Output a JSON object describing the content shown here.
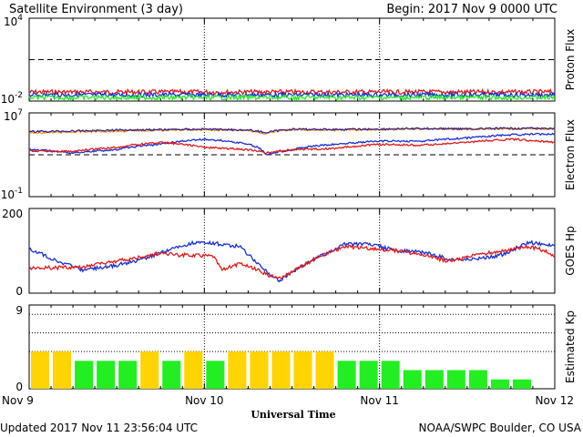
{
  "header": {
    "title": "Satellite Environment (3 day)",
    "begin": "Begin:  2017 Nov 9 0000 UTC"
  },
  "footer": {
    "updated": "Updated 2017 Nov 11 23:56:04 UTC",
    "credit": "NOAA/SWPC Boulder, CO USA"
  },
  "x_axis": {
    "label": "Universal Time",
    "ticks": [
      "Nov 9",
      "Nov 10",
      "Nov 11",
      "Nov 12"
    ]
  },
  "colors": {
    "red": "#e41a1a",
    "blue": "#1a2fd6",
    "green": "#22ee22",
    "orange": "#f4a21e",
    "navy": "#3a1f8a",
    "kp_yellow": "#ffd400",
    "kp_green": "#22ee22"
  },
  "chart_data": [
    {
      "type": "line",
      "ylabel": "Proton Flux",
      "yscale": "log",
      "yticks": [
        "10",
        "10"
      ],
      "yticks_exp": [
        "4",
        "-2"
      ],
      "ylim": [
        0.01,
        10000
      ],
      "threshold": 10,
      "x_unit": "days since 2017 Nov 9 0000 UTC",
      "xlim": [
        0,
        3
      ],
      "series": [
        {
          "color": "red",
          "x": [
            0,
            0.5,
            1,
            1.5,
            2,
            2.5,
            3
          ],
          "y": [
            0.045,
            0.045,
            0.045,
            0.045,
            0.045,
            0.045,
            0.045
          ]
        },
        {
          "color": "blue",
          "x": [
            0,
            0.5,
            1,
            1.5,
            2,
            2.5,
            3
          ],
          "y": [
            0.028,
            0.028,
            0.028,
            0.028,
            0.028,
            0.028,
            0.028
          ]
        },
        {
          "color": "green",
          "x": [
            0,
            0.5,
            1,
            1.5,
            2,
            2.5,
            3
          ],
          "y": [
            0.018,
            0.018,
            0.018,
            0.018,
            0.018,
            0.018,
            0.018
          ]
        }
      ]
    },
    {
      "type": "line",
      "ylabel": "Electron Flux",
      "yscale": "log",
      "yticks": [
        "10",
        "10"
      ],
      "yticks_exp": [
        "7",
        "-1"
      ],
      "ylim": [
        0.1,
        10000000
      ],
      "threshold": 1000,
      "xlim": [
        0,
        3
      ],
      "series": [
        {
          "color": "orange",
          "x": [
            0,
            0.25,
            0.5,
            0.75,
            1.0,
            1.25,
            1.35,
            1.5,
            1.75,
            2.0,
            2.25,
            2.5,
            2.75,
            3.0
          ],
          "y": [
            120000,
            150000,
            180000,
            220000,
            250000,
            200000,
            100000,
            250000,
            220000,
            250000,
            300000,
            280000,
            300000,
            300000
          ]
        },
        {
          "color": "navy",
          "x": [
            0,
            0.25,
            0.5,
            0.75,
            1.0,
            1.25,
            1.35,
            1.5,
            1.75,
            2.0,
            2.25,
            2.5,
            2.75,
            3.0
          ],
          "y": [
            160000,
            180000,
            230000,
            250000,
            280000,
            230000,
            130000,
            280000,
            260000,
            280000,
            320000,
            300000,
            330000,
            330000
          ]
        },
        {
          "color": "blue",
          "x": [
            0,
            0.25,
            0.5,
            0.75,
            1.0,
            1.25,
            1.35,
            1.5,
            1.75,
            2.0,
            2.25,
            2.5,
            2.75,
            3.0
          ],
          "y": [
            3000,
            1500,
            3000,
            10000,
            30000,
            10000,
            1000,
            3000,
            10000,
            20000,
            20000,
            40000,
            80000,
            100000
          ]
        },
        {
          "color": "red",
          "x": [
            0,
            0.25,
            0.5,
            0.75,
            1.0,
            1.25,
            1.35,
            1.5,
            1.75,
            2.0,
            2.25,
            2.5,
            2.75,
            3.0
          ],
          "y": [
            2500,
            2000,
            5000,
            15000,
            5000,
            3000,
            1500,
            3000,
            4000,
            10000,
            8000,
            15000,
            30000,
            15000
          ]
        }
      ]
    },
    {
      "type": "line",
      "ylabel": "GOES Hp",
      "ylim": [
        0,
        200
      ],
      "yticks": [
        "200",
        "0"
      ],
      "xlim": [
        0,
        3
      ],
      "series": [
        {
          "color": "blue",
          "x": [
            0,
            0.15,
            0.3,
            0.45,
            0.6,
            0.75,
            0.85,
            0.95,
            1.05,
            1.2,
            1.3,
            1.38,
            1.43,
            1.5,
            1.65,
            1.8,
            1.95,
            2.1,
            2.25,
            2.4,
            2.55,
            2.7,
            2.85,
            2.95,
            3.0
          ],
          "y": [
            105,
            78,
            55,
            62,
            75,
            95,
            110,
            120,
            118,
            110,
            72,
            42,
            30,
            50,
            85,
            115,
            115,
            100,
            97,
            80,
            80,
            90,
            120,
            115,
            110
          ]
        },
        {
          "color": "red",
          "x": [
            0,
            0.15,
            0.3,
            0.45,
            0.6,
            0.75,
            0.85,
            0.95,
            1.05,
            1.1,
            1.2,
            1.3,
            1.38,
            1.45,
            1.5,
            1.65,
            1.8,
            1.95,
            2.1,
            2.25,
            2.4,
            2.55,
            2.7,
            2.85,
            2.95,
            3.0
          ],
          "y": [
            60,
            60,
            62,
            72,
            82,
            95,
            90,
            90,
            88,
            55,
            70,
            55,
            40,
            38,
            50,
            85,
            110,
            105,
            100,
            90,
            75,
            90,
            100,
            110,
            100,
            85
          ]
        }
      ]
    },
    {
      "type": "bar",
      "ylabel": "Estimated Kp",
      "ylim": [
        0,
        9
      ],
      "yticks": [
        "9",
        "0"
      ],
      "interval_hours": 3,
      "values": [
        4,
        4,
        3,
        3,
        3,
        4,
        3,
        4,
        3,
        4,
        4,
        4,
        4,
        4,
        3,
        3,
        3,
        2,
        2,
        2,
        2,
        1,
        1
      ],
      "grid_levels": [
        4,
        6,
        8
      ]
    }
  ]
}
